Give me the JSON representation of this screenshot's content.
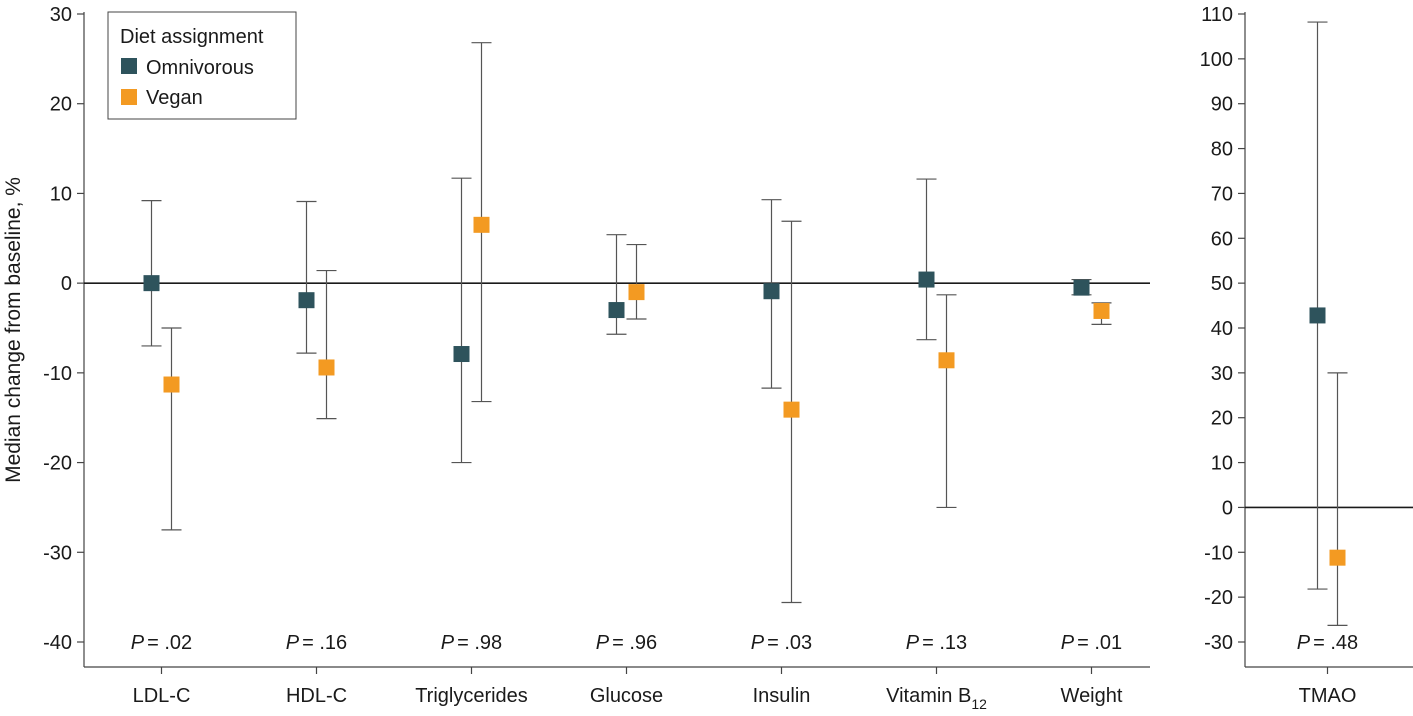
{
  "chart_data": [
    {
      "type": "scatter",
      "title": "",
      "ylabel": "Median change from baseline, %",
      "xlabel": "",
      "ylim": [
        -40,
        30
      ],
      "yticks": [
        30,
        20,
        10,
        0,
        -10,
        -20,
        -30,
        -40
      ],
      "ytick_labels": [
        "30",
        "20",
        "10",
        "0",
        "-10",
        "-20",
        "-30",
        "-40"
      ],
      "categories": [
        {
          "label": "LDL-C"
        },
        {
          "label": "HDL-C"
        },
        {
          "label": "Triglycerides"
        },
        {
          "label": "Glucose"
        },
        {
          "label": "Insulin"
        },
        {
          "label": "Vitamin B",
          "sub": "12"
        },
        {
          "label": "Weight"
        }
      ],
      "p_prefix": "P",
      "p_values": [
        "= .02",
        "= .16",
        "= .98",
        "= .96",
        "= .03",
        "= .13",
        "= .01"
      ],
      "series": [
        {
          "name": "Omnivorous",
          "color": "#2e535c",
          "values": [
            0,
            -1.9,
            -7.9,
            -3.0,
            -0.9,
            0.4,
            -0.5
          ],
          "lower": [
            -7.0,
            -7.8,
            -20.0,
            -5.7,
            -11.7,
            -6.3,
            -1.3
          ],
          "upper": [
            9.2,
            9.1,
            11.7,
            5.4,
            9.3,
            11.6,
            0.4
          ]
        },
        {
          "name": "Vegan",
          "color": "#f39a22",
          "values": [
            -11.3,
            -9.4,
            6.5,
            -1.0,
            -14.1,
            -8.6,
            -3.1
          ],
          "lower": [
            -27.5,
            -15.1,
            -13.2,
            -4.0,
            -35.6,
            -25.0,
            -4.6
          ],
          "upper": [
            -5.0,
            1.4,
            26.8,
            4.3,
            6.9,
            -1.3,
            -2.2
          ]
        }
      ],
      "legend": {
        "title": "Diet assignment",
        "position": "top-left"
      }
    },
    {
      "type": "scatter",
      "ylim": [
        -30,
        110
      ],
      "yticks": [
        110,
        100,
        90,
        80,
        70,
        60,
        50,
        40,
        30,
        20,
        10,
        0,
        -10,
        -20,
        -30
      ],
      "ytick_labels": [
        "110",
        "100",
        "90",
        "80",
        "70",
        "60",
        "50",
        "40",
        "30",
        "20",
        "10",
        "0",
        "-10",
        "-20",
        "-30"
      ],
      "categories": [
        {
          "label": "TMAO"
        }
      ],
      "p_prefix": "P",
      "p_values": [
        "= .48"
      ],
      "series": [
        {
          "name": "Omnivorous",
          "color": "#2e535c",
          "values": [
            42.8
          ],
          "lower": [
            -18.2
          ],
          "upper": [
            108.2
          ]
        },
        {
          "name": "Vegan",
          "color": "#f39a22",
          "values": [
            -11.2
          ],
          "lower": [
            -26.3
          ],
          "upper": [
            30.0
          ]
        }
      ]
    }
  ]
}
